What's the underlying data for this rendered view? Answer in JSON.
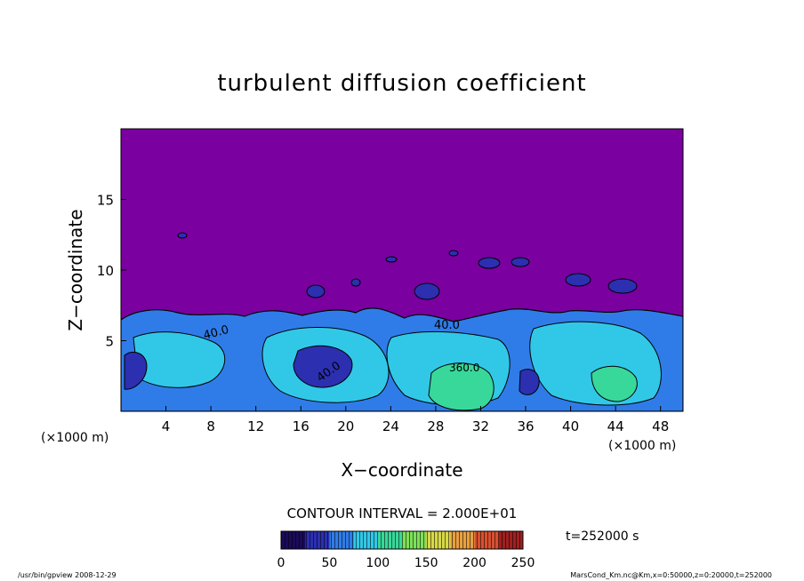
{
  "chart_data": {
    "type": "heatmap",
    "title": "turbulent diffusion coefficient",
    "xlabel": "X−coordinate",
    "ylabel": "Z−coordinate",
    "x_unit_left": "(×1000 m)",
    "x_unit_right": "(×1000 m)",
    "xlim": [
      0,
      50
    ],
    "ylim": [
      0,
      20
    ],
    "x_ticks": [
      4,
      8,
      12,
      16,
      20,
      24,
      28,
      32,
      36,
      40,
      44,
      48
    ],
    "y_ticks": [
      5,
      10,
      15
    ],
    "contour_interval_text": "CONTOUR INTERVAL = 2.000E+01",
    "contour_labels": [
      "40.0",
      "40.0",
      "40.0",
      "40.0",
      "40.0",
      "360.0"
    ],
    "colorbar": {
      "min": 0,
      "max": 250,
      "ticks": [
        0,
        50,
        100,
        150,
        200,
        250
      ],
      "colors": [
        "#1a0a5a",
        "#2b2fb0",
        "#2f7ce8",
        "#31c8e8",
        "#38d89a",
        "#7ee05a",
        "#d8d848",
        "#e8a040",
        "#d85030",
        "#a02020"
      ]
    },
    "background_color": "#7a00a0",
    "time_label": "t=252000 s",
    "footer_left": "/usr/bin/gpview   2008-12-29",
    "footer_right": "MarsCond_Km.nc@Km,x=0:50000,z=0:20000,t=252000"
  }
}
